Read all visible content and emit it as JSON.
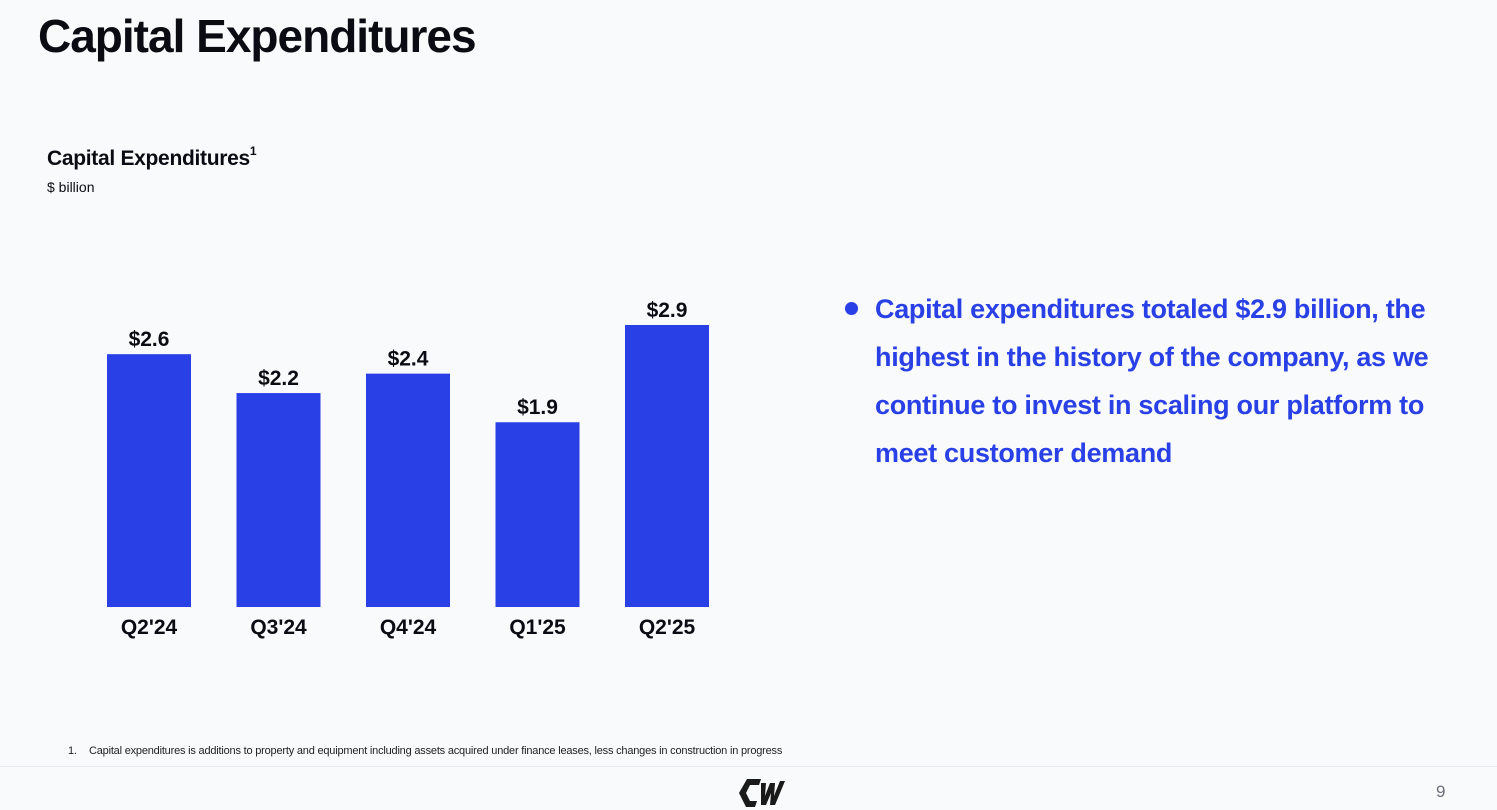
{
  "page": {
    "title": "Capital Expenditures",
    "page_number": "9"
  },
  "chart_heading": {
    "title": "Capital Expenditures",
    "superscript": "1",
    "unit": "$ billion"
  },
  "chart_data": {
    "type": "bar",
    "title": "Capital Expenditures",
    "ylabel": "$ billion",
    "xlabel": "",
    "categories": [
      "Q2'24",
      "Q3'24",
      "Q4'24",
      "Q1'25",
      "Q2'25"
    ],
    "values": [
      2.6,
      2.2,
      2.4,
      1.9,
      2.9
    ],
    "data_labels": [
      "$2.6",
      "$2.2",
      "$2.4",
      "$1.9",
      "$2.9"
    ],
    "ylim": [
      0,
      2.9
    ],
    "grid": false,
    "color": "#2940e6"
  },
  "bullets": [
    {
      "text": "Capital  expenditures totaled $2.9 billion, the highest in the history of the company, as we continue to invest in scaling our platform to meet customer demand"
    }
  ],
  "footnote": {
    "number": "1.",
    "text": "Capital expenditures is additions to property and equipment including assets acquired under finance leases, less changes in construction in progress"
  },
  "colors": {
    "accent": "#2940e6",
    "text": "#0b0b14",
    "background": "#f9fafb"
  }
}
